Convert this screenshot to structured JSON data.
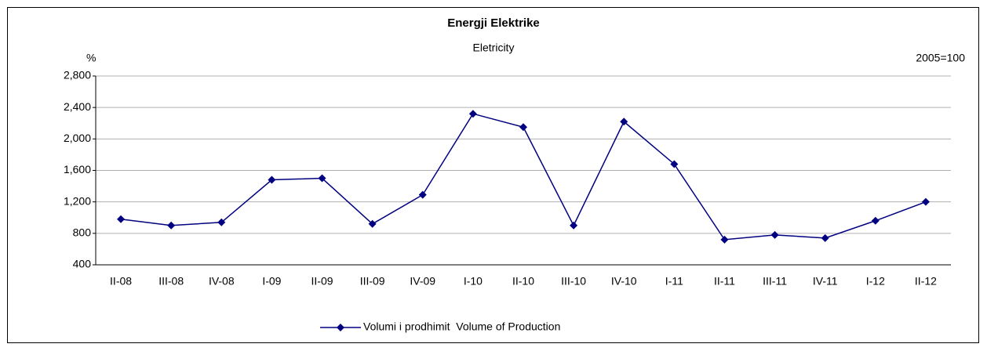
{
  "chart_data": {
    "type": "line",
    "title": "Energji Elektrike",
    "subtitle": "Eletricity",
    "y_label": "%",
    "annotation": "2005=100",
    "categories": [
      "II-08",
      "III-08",
      "IV-08",
      "I-09",
      "II-09",
      "III-09",
      "IV-09",
      "I-10",
      "II-10",
      "III-10",
      "IV-10",
      "I-11",
      "II-11",
      "III-11",
      "IV-11",
      "I-12",
      "II-12"
    ],
    "series": [
      {
        "name": "Volumi i prodhimit  Volume of Production",
        "color": "#000080",
        "values": [
          980,
          900,
          940,
          1480,
          1500,
          920,
          1290,
          2320,
          2150,
          900,
          2220,
          1680,
          720,
          780,
          740,
          960,
          1200
        ]
      }
    ],
    "ylim": [
      400,
      2800
    ],
    "yticks": [
      400,
      800,
      {
        "value": 1200,
        "label": "1,200"
      },
      {
        "value": 1600,
        "label": "1,600"
      },
      {
        "value": 2000,
        "label": "2,000"
      },
      {
        "value": 2400,
        "label": "2,400"
      },
      {
        "value": 2800,
        "label": "2,800"
      }
    ],
    "grid": true,
    "legend": "bottom"
  }
}
